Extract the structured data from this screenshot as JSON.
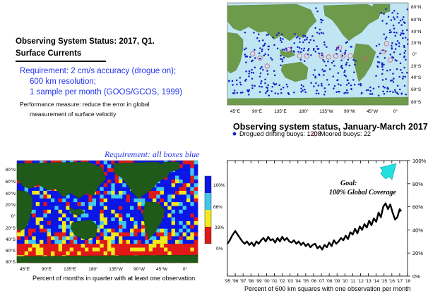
{
  "header": {
    "title_line1": "Observing System Status:  2017, Q1.",
    "title_line2": "Surface Currents",
    "requirement_lines": [
      "Requirement: 2 cm/s accuracy (drogue on);",
      "600 km resolution;",
      "1 sample per month (GOOS/GCOS, 1999)"
    ],
    "performance_lines": [
      "Performance measure: reduce the error in global",
      "measurement of surface velocity"
    ]
  },
  "buoy_map": {
    "title": "Observing system status, January-March 2017",
    "lat_labels": [
      "80°N",
      "60°N",
      "40°N",
      "20°N",
      "0°",
      "20°S",
      "40°S",
      "60°S",
      "80°S"
    ],
    "lon_labels": [
      "45°E",
      "90°E",
      "135°E",
      "180°",
      "135°W",
      "90°W",
      "45°W",
      "0°"
    ],
    "legend": [
      {
        "label": "Drogued drifting buoys: 1208",
        "color": "#1020cc",
        "symbol": "dot"
      },
      {
        "label": "Moored buoys: 22",
        "color": "#e0506a",
        "symbol": "ring"
      }
    ]
  },
  "coverage_map": {
    "requirement": "Requirement: all boxes blue",
    "lat_labels": [
      "80°N",
      "60°N",
      "40°N",
      "20°N",
      "0°",
      "20°S",
      "40°S",
      "60°S",
      "80°S"
    ],
    "lon_labels": [
      "45°E",
      "90°E",
      "135°E",
      "180°",
      "135°W",
      "90°W",
      "45°W",
      "0°"
    ],
    "colorbar": [
      {
        "label": "100%",
        "color": "#0a16e6"
      },
      {
        "label": "66%",
        "color": "#3ec8ee"
      },
      {
        "label": "33%",
        "color": "#f2ea1a"
      },
      {
        "label": "0%",
        "color": "#e01818"
      }
    ],
    "caption": "Percent of months in quarter with at least one observation"
  },
  "chart_data": {
    "type": "line",
    "title": "",
    "annotation_line1": "Goal:",
    "annotation_line2": "100% Global Coverage",
    "xlabel": "Percent of 600 km squares with one observation per month",
    "ylabel": "",
    "x_tick_labels": [
      "'95",
      "'96",
      "'97",
      "'98",
      "'99",
      "'00",
      "'01",
      "'02",
      "'03",
      "'04",
      "'05",
      "'06",
      "'07",
      "'08",
      "'09",
      "'10",
      "'11",
      "'12",
      "'13",
      "'14",
      "'15",
      "'16",
      "'17",
      "'18"
    ],
    "xlim": [
      1995,
      2018
    ],
    "ylim": [
      0,
      100
    ],
    "y_tick_labels": [
      "0%",
      "20%",
      "40%",
      "60%",
      "80%",
      "100%"
    ],
    "y_ticks": [
      0,
      20,
      40,
      60,
      80,
      100
    ],
    "series": [
      {
        "x": [
          1995.0,
          1995.3,
          1995.6,
          1996.0,
          1996.3,
          1996.6,
          1996.9,
          1997.2,
          1997.5,
          1997.8,
          1998.1,
          1998.4,
          1998.7,
          1999.0,
          1999.3,
          1999.6,
          1999.9,
          2000.2,
          2000.5,
          2000.8,
          2001.1,
          2001.4,
          2001.7,
          2002.0,
          2002.3,
          2002.6,
          2002.9,
          2003.2,
          2003.5,
          2003.8,
          2004.1,
          2004.4,
          2004.7,
          2005.0,
          2005.3,
          2005.6,
          2005.9,
          2006.2,
          2006.5,
          2006.8,
          2007.1,
          2007.4,
          2007.7,
          2008.0,
          2008.3,
          2008.6,
          2008.9,
          2009.2,
          2009.5,
          2009.8,
          2010.1,
          2010.4,
          2010.7,
          2011.0,
          2011.3,
          2011.6,
          2011.9,
          2012.2,
          2012.5,
          2012.8,
          2013.1,
          2013.4,
          2013.7,
          2014.0,
          2014.3,
          2014.6,
          2014.9,
          2015.2,
          2015.5,
          2015.8,
          2016.1,
          2016.4,
          2016.7,
          2017.0,
          2017.2
        ],
        "y": [
          28,
          31,
          35,
          39,
          36,
          33,
          30,
          28,
          30,
          27,
          29,
          26,
          30,
          28,
          31,
          33,
          30,
          34,
          31,
          32,
          29,
          33,
          30,
          34,
          31,
          33,
          30,
          29,
          31,
          28,
          30,
          27,
          29,
          26,
          28,
          25,
          27,
          28,
          24,
          26,
          23,
          27,
          25,
          29,
          26,
          31,
          28,
          30,
          33,
          31,
          35,
          32,
          38,
          36,
          41,
          37,
          43,
          40,
          45,
          42,
          48,
          44,
          50,
          47,
          55,
          51,
          60,
          63,
          58,
          62,
          55,
          49,
          51,
          58,
          56
        ]
      }
    ]
  }
}
